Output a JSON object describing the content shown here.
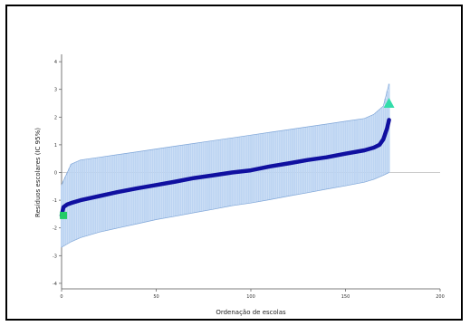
{
  "chart_data": {
    "type": "line",
    "xlabel": "Ordenação de escolas",
    "ylabel": "Resíduos escolares (IC 95%)",
    "xlim": [
      0,
      200
    ],
    "ylim": [
      -4.2,
      4.2
    ],
    "x_ticks": [
      0,
      50,
      100,
      150,
      200
    ],
    "x_tick_labels": [
      "0",
      "50",
      "100",
      "150",
      "200"
    ],
    "y_ticks": [
      -4,
      -3,
      -2,
      -1,
      0,
      1,
      2,
      3,
      4
    ],
    "y_tick_labels": [
      "-4",
      "-3",
      "-2",
      "-1",
      "0",
      "1",
      "2",
      "3",
      "4"
    ],
    "reference_line": {
      "y": 0
    },
    "series": [
      {
        "values": [
          [
            0,
            -1.55
          ],
          [
            1,
            -1.25
          ],
          [
            3,
            -1.15
          ],
          [
            5,
            -1.1
          ],
          [
            10,
            -1.0
          ],
          [
            20,
            -0.85
          ],
          [
            30,
            -0.7
          ],
          [
            40,
            -0.57
          ],
          [
            50,
            -0.45
          ],
          [
            60,
            -0.33
          ],
          [
            70,
            -0.2
          ],
          [
            80,
            -0.1
          ],
          [
            90,
            0.0
          ],
          [
            100,
            0.08
          ],
          [
            110,
            0.22
          ],
          [
            120,
            0.33
          ],
          [
            130,
            0.45
          ],
          [
            140,
            0.55
          ],
          [
            150,
            0.68
          ],
          [
            160,
            0.8
          ],
          [
            165,
            0.9
          ],
          [
            168,
            1.0
          ],
          [
            170,
            1.2
          ],
          [
            172,
            1.6
          ],
          [
            173,
            1.9
          ]
        ],
        "ci_lower": [
          [
            0,
            -2.7
          ],
          [
            5,
            -2.5
          ],
          [
            10,
            -2.35
          ],
          [
            20,
            -2.15
          ],
          [
            30,
            -2.0
          ],
          [
            40,
            -1.85
          ],
          [
            50,
            -1.7
          ],
          [
            60,
            -1.58
          ],
          [
            70,
            -1.45
          ],
          [
            80,
            -1.33
          ],
          [
            90,
            -1.2
          ],
          [
            100,
            -1.1
          ],
          [
            110,
            -0.98
          ],
          [
            120,
            -0.85
          ],
          [
            130,
            -0.73
          ],
          [
            140,
            -0.6
          ],
          [
            150,
            -0.48
          ],
          [
            160,
            -0.35
          ],
          [
            165,
            -0.25
          ],
          [
            170,
            -0.1
          ],
          [
            173,
            0.0
          ]
        ],
        "ci_upper": [
          [
            0,
            -0.45
          ],
          [
            5,
            0.3
          ],
          [
            10,
            0.45
          ],
          [
            20,
            0.55
          ],
          [
            30,
            0.65
          ],
          [
            40,
            0.75
          ],
          [
            50,
            0.85
          ],
          [
            60,
            0.95
          ],
          [
            70,
            1.05
          ],
          [
            80,
            1.15
          ],
          [
            90,
            1.25
          ],
          [
            100,
            1.35
          ],
          [
            110,
            1.45
          ],
          [
            120,
            1.55
          ],
          [
            130,
            1.65
          ],
          [
            140,
            1.75
          ],
          [
            150,
            1.85
          ],
          [
            160,
            1.95
          ],
          [
            165,
            2.1
          ],
          [
            170,
            2.4
          ],
          [
            173,
            3.2
          ]
        ]
      }
    ],
    "markers": [
      {
        "shape": "square",
        "x": 1,
        "y": -1.55,
        "color": "#22cc66"
      },
      {
        "shape": "triangle",
        "x": 173,
        "y": 2.5,
        "color": "#33ddaa"
      }
    ],
    "colors": {
      "line": "#1010a0",
      "band": "#bcd4f2",
      "band_edge": "#7fa6d8"
    }
  }
}
